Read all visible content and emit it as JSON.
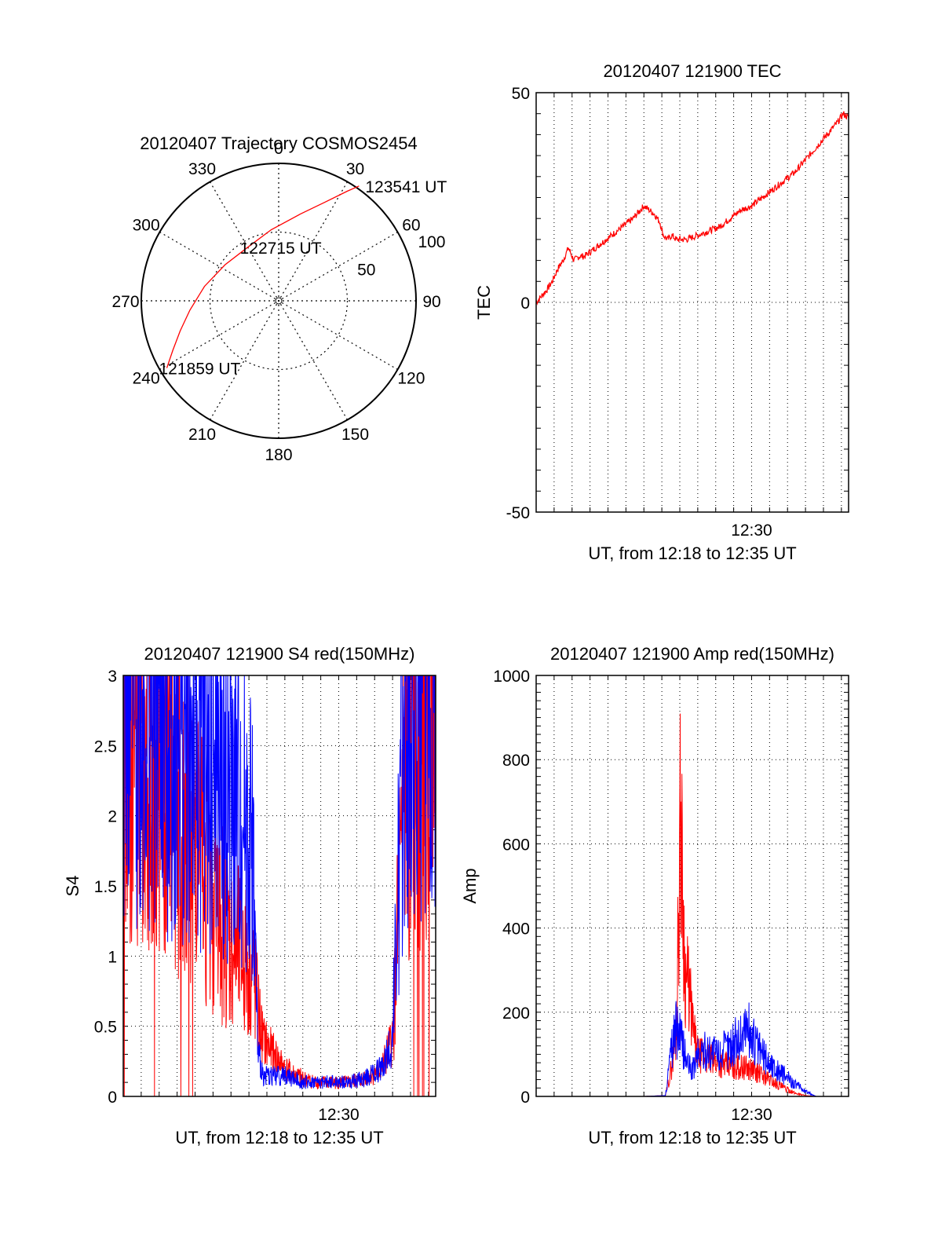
{
  "chart_data": [
    {
      "type": "polar",
      "title": "20120407 Trajectory COSMOS2454",
      "azimuth_labels": [
        "0",
        "30",
        "60",
        "90",
        "120",
        "150",
        "180",
        "210",
        "240",
        "270",
        "300",
        "330"
      ],
      "radial_labels": [
        "50",
        "100"
      ],
      "radial_label_values": [
        50,
        100
      ],
      "radial_max": 100,
      "grid": true,
      "series": [
        {
          "color": "#ff0000",
          "points": [
            {
              "az": 239,
              "r": 95
            },
            {
              "az": 245,
              "r": 85
            },
            {
              "az": 253,
              "r": 75
            },
            {
              "az": 264,
              "r": 65
            },
            {
              "az": 281,
              "r": 55
            },
            {
              "az": 304,
              "r": 47
            },
            {
              "az": 330,
              "r": 45
            },
            {
              "az": 354,
              "r": 52
            },
            {
              "az": 14,
              "r": 65
            },
            {
              "az": 25,
              "r": 79
            },
            {
              "az": 32,
              "r": 94
            },
            {
              "az": 35,
              "r": 102
            }
          ]
        }
      ],
      "annotations": [
        {
          "text": "123541 UT",
          "az": 35,
          "r": 102
        },
        {
          "text": "122715 UT",
          "az": 330,
          "r": 45
        },
        {
          "text": "121859 UT",
          "az": 239,
          "r": 95
        }
      ]
    },
    {
      "type": "line",
      "title": "20120407 121900 TEC",
      "xlabel": "UT, from 12:18 to 12:35 UT",
      "ylabel": "TEC",
      "xlim": [
        12.3,
        12.59
      ],
      "ylim": [
        -50,
        50
      ],
      "yticks": [
        "50",
        "0",
        "-50"
      ],
      "ytick_values": [
        50,
        0,
        -50
      ],
      "xticks": [
        "12:30"
      ],
      "xtick_values": [
        12.5
      ],
      "grid": true,
      "series": [
        {
          "color": "#ff0000",
          "x": [
            12.3,
            12.31,
            12.315,
            12.32,
            12.325,
            12.33,
            12.335,
            12.34,
            12.345,
            12.35,
            12.36,
            12.37,
            12.38,
            12.39,
            12.4,
            12.41,
            12.415,
            12.418,
            12.422,
            12.426,
            12.43,
            12.435,
            12.44,
            12.45,
            12.46,
            12.47,
            12.48,
            12.49,
            12.5,
            12.51,
            12.52,
            12.53,
            12.54,
            12.55,
            12.56,
            12.57,
            12.58,
            12.585,
            12.59
          ],
          "y": [
            0,
            3,
            5,
            8,
            10,
            13,
            10,
            11,
            11,
            12,
            14,
            16,
            18,
            20,
            23,
            21,
            19,
            16,
            15,
            16,
            15,
            15,
            15,
            16,
            17,
            18,
            20,
            22,
            23,
            25,
            27,
            29,
            31,
            34,
            37,
            40,
            43,
            45,
            44
          ]
        }
      ]
    },
    {
      "type": "line",
      "title": "20120407 121900 S4 red(150MHz)",
      "xlabel": "UT, from 12:18 to 12:35 UT",
      "ylabel": "S4",
      "xlim": [
        12.3,
        12.59
      ],
      "ylim": [
        0,
        3
      ],
      "yticks": [
        "3",
        "2.5",
        "2",
        "1.5",
        "1",
        "0.5",
        "0"
      ],
      "ytick_values": [
        3,
        2.5,
        2,
        1.5,
        1,
        0.5,
        0
      ],
      "xticks": [
        "12:30"
      ],
      "xtick_values": [
        12.5
      ],
      "grid": true,
      "series": [
        {
          "color": "#ff0000",
          "x": [
            12.3,
            12.31,
            12.32,
            12.33,
            12.34,
            12.35,
            12.36,
            12.37,
            12.38,
            12.39,
            12.4,
            12.41,
            12.42,
            12.425,
            12.43,
            12.44,
            12.45,
            12.46,
            12.47,
            12.48,
            12.49,
            12.5,
            12.51,
            12.52,
            12.53,
            12.54,
            12.55,
            12.555,
            12.56,
            12.57,
            12.58,
            12.59
          ],
          "y": [
            2.6,
            2.7,
            2.5,
            2.4,
            2.3,
            2.1,
            1.9,
            1.7,
            1.5,
            1.3,
            1.1,
            1.0,
            0.9,
            0.6,
            0.4,
            0.3,
            0.2,
            0.15,
            0.12,
            0.1,
            0.1,
            0.1,
            0.1,
            0.12,
            0.15,
            0.2,
            0.4,
            1.2,
            2.2,
            2.5,
            2.6,
            2.7
          ]
        },
        {
          "color": "#0000ff",
          "x": [
            12.3,
            12.31,
            12.32,
            12.33,
            12.34,
            12.35,
            12.36,
            12.37,
            12.38,
            12.39,
            12.4,
            12.41,
            12.42,
            12.425,
            12.43,
            12.44,
            12.45,
            12.46,
            12.47,
            12.48,
            12.49,
            12.5,
            12.51,
            12.52,
            12.53,
            12.54,
            12.55,
            12.555,
            12.56,
            12.57,
            12.58,
            12.59
          ],
          "y": [
            2.9,
            2.9,
            2.8,
            2.7,
            2.7,
            2.6,
            2.5,
            2.4,
            2.3,
            2.2,
            2.1,
            2.0,
            1.8,
            0.3,
            0.15,
            0.15,
            0.15,
            0.12,
            0.1,
            0.1,
            0.1,
            0.1,
            0.1,
            0.12,
            0.15,
            0.2,
            0.4,
            1.5,
            2.6,
            2.8,
            2.9,
            2.9
          ]
        }
      ]
    },
    {
      "type": "line",
      "title": "20120407 121900 Amp red(150MHz)",
      "xlabel": "UT, from 12:18 to 12:35 UT",
      "ylabel": "Amp",
      "xlim": [
        12.3,
        12.59
      ],
      "ylim": [
        0,
        1000
      ],
      "yticks": [
        "1000",
        "800",
        "600",
        "400",
        "200",
        "0"
      ],
      "ytick_values": [
        1000,
        800,
        600,
        400,
        200,
        0
      ],
      "xticks": [
        "12:30"
      ],
      "xtick_values": [
        12.5
      ],
      "grid": true,
      "series": [
        {
          "color": "#ff0000",
          "x": [
            12.3,
            12.35,
            12.4,
            12.42,
            12.425,
            12.43,
            12.434,
            12.438,
            12.442,
            12.446,
            12.45,
            12.46,
            12.47,
            12.48,
            12.49,
            12.5,
            12.51,
            12.52,
            12.53,
            12.54,
            12.55,
            12.56,
            12.59
          ],
          "y": [
            0,
            0,
            0,
            2,
            60,
            150,
            680,
            300,
            250,
            150,
            100,
            90,
            80,
            70,
            70,
            65,
            50,
            35,
            20,
            8,
            2,
            0,
            0
          ]
        },
        {
          "color": "#0000ff",
          "x": [
            12.3,
            12.35,
            12.4,
            12.42,
            12.425,
            12.43,
            12.435,
            12.44,
            12.445,
            12.45,
            12.46,
            12.47,
            12.48,
            12.49,
            12.495,
            12.5,
            12.51,
            12.52,
            12.53,
            12.54,
            12.55,
            12.56,
            12.59
          ],
          "y": [
            0,
            0,
            0,
            2,
            100,
            160,
            130,
            80,
            60,
            100,
            110,
            100,
            120,
            140,
            170,
            140,
            100,
            70,
            50,
            30,
            12,
            0,
            0
          ]
        }
      ]
    }
  ]
}
